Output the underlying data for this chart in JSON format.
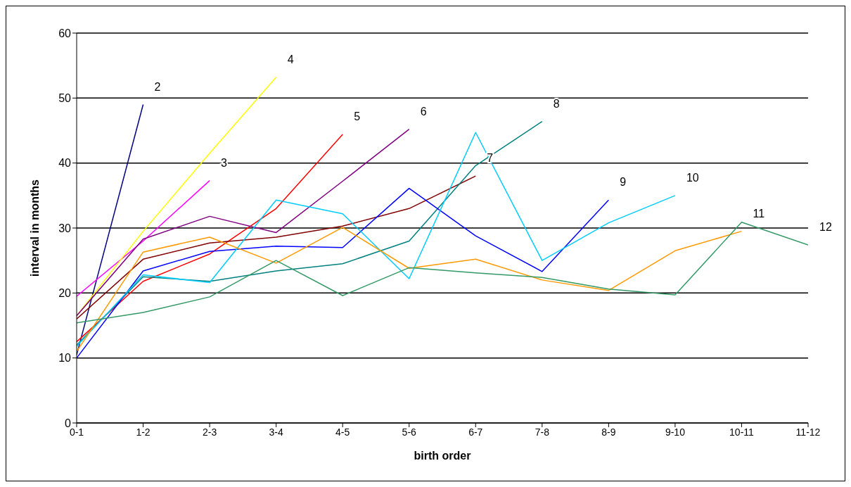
{
  "chart_data": {
    "type": "line",
    "xlabel": "birth order",
    "ylabel": "interval in months",
    "categories": [
      "0-1",
      "1-2",
      "2-3",
      "3-4",
      "4-5",
      "5-6",
      "6-7",
      "7-8",
      "8-9",
      "9-10",
      "10-11",
      "11-12"
    ],
    "ylim": [
      0,
      60
    ],
    "yticks": [
      0,
      10,
      20,
      30,
      40,
      50,
      60
    ],
    "grid": "y",
    "legend": false,
    "marker": "none",
    "line_style": "solid",
    "series": [
      {
        "name": "2",
        "color": "#000080",
        "values": [
          10.5,
          49,
          null,
          null,
          null,
          null,
          null,
          null,
          null,
          null,
          null,
          null
        ]
      },
      {
        "name": "3",
        "color": "#ff00ff",
        "values": [
          19.5,
          28,
          37.3,
          null,
          null,
          null,
          null,
          null,
          null,
          null,
          null,
          null
        ]
      },
      {
        "name": "4",
        "color": "#ffff00",
        "values": [
          16.5,
          29.5,
          41.5,
          53.2,
          null,
          null,
          null,
          null,
          null,
          null,
          null,
          null
        ]
      },
      {
        "name": "5",
        "color": "#ff0000",
        "values": [
          12.5,
          21.8,
          26,
          33,
          44.4,
          null,
          null,
          null,
          null,
          null,
          null,
          null
        ]
      },
      {
        "name": "6",
        "color": "#800080",
        "values": [
          16.5,
          28.3,
          31.8,
          29.3,
          37.2,
          45.2,
          null,
          null,
          null,
          null,
          null,
          null
        ]
      },
      {
        "name": "7",
        "color": "#800000",
        "values": [
          16,
          25.2,
          27.7,
          28.6,
          30.3,
          33,
          38,
          null,
          null,
          null,
          null,
          null
        ]
      },
      {
        "name": "8",
        "color": "#008080",
        "values": [
          12,
          22.5,
          21.8,
          23.4,
          24.5,
          28,
          39.6,
          46.4,
          null,
          null,
          null,
          null
        ]
      },
      {
        "name": "9",
        "color": "#0000ff",
        "values": [
          10,
          23.4,
          26.4,
          27.2,
          27,
          36.1,
          28.8,
          23.3,
          34.3,
          null,
          null,
          null
        ]
      },
      {
        "name": "10",
        "color": "#00ccff",
        "values": [
          11.8,
          22.8,
          21.6,
          34.3,
          32.2,
          22.2,
          44.7,
          25,
          30.8,
          35,
          null,
          null
        ]
      },
      {
        "name": "11",
        "color": "#ff9900",
        "values": [
          11,
          26.3,
          28.6,
          24.6,
          30.1,
          23.8,
          25.2,
          22,
          20.4,
          26.5,
          29.5,
          null
        ]
      },
      {
        "name": "12",
        "color": "#339966",
        "values": [
          15.4,
          17,
          19.4,
          25,
          19.6,
          23.9,
          23.1,
          22.4,
          20.6,
          19.7,
          30.9,
          27.4
        ]
      }
    ]
  }
}
